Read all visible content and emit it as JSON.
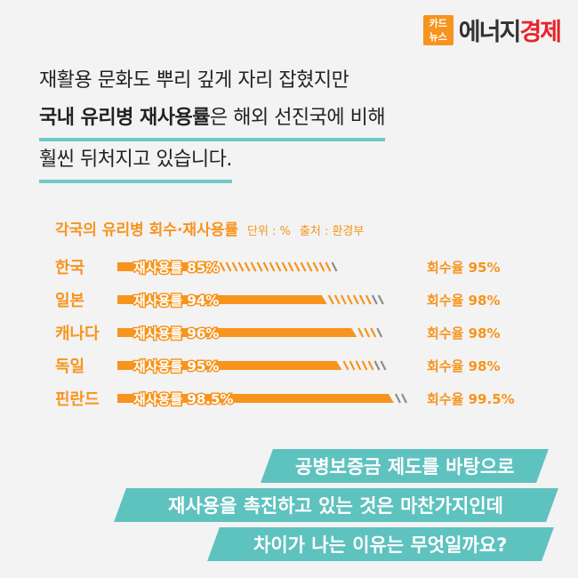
{
  "logo": {
    "badge_line1": "카드",
    "badge_line2": "뉴스",
    "name_part1": "에너지",
    "name_part2": "경제"
  },
  "headline": {
    "line1": "재활용 문화도 뿌리 깊게 자리 잡혔지만",
    "line2_bold": "국내 유리병 재사용률",
    "line2_rest": "은 해외 선진국에 비해",
    "line3": "훨씬 뒤처지고 있습니다."
  },
  "chart_data": {
    "type": "bar",
    "title": "각국의 유리병 회수·재사용률",
    "unit_label": "단위 : %",
    "source_label": "출처 : 환경부",
    "categories": [
      "한국",
      "일본",
      "캐나다",
      "독일",
      "핀란드"
    ],
    "series": [
      {
        "name": "재사용률",
        "values": [
          85,
          94,
          96,
          95,
          98.5
        ],
        "value_labels": [
          "재사용률 85%",
          "재사용률 94%",
          "재사용률 96%",
          "재사용률 95%",
          "재사용률 98.5%"
        ]
      },
      {
        "name": "회수율",
        "values": [
          95,
          98,
          98,
          98,
          99.5
        ],
        "value_labels": [
          "회수율 95%",
          "회수율 98%",
          "회수율 98%",
          "회수율 98%",
          "회수율 99.5%"
        ]
      }
    ],
    "xlim": [
      0,
      100
    ],
    "colors": {
      "reuse": "#f7941d",
      "recovery": "#8c8c8c",
      "label": "#f7941d"
    }
  },
  "cta": {
    "line1": "공병보증금 제도를 바탕으로",
    "line2": "재사용을 촉진하고 있는 것은 마찬가지인데",
    "line3": "차이가 나는 이유는 무엇일까요?"
  }
}
